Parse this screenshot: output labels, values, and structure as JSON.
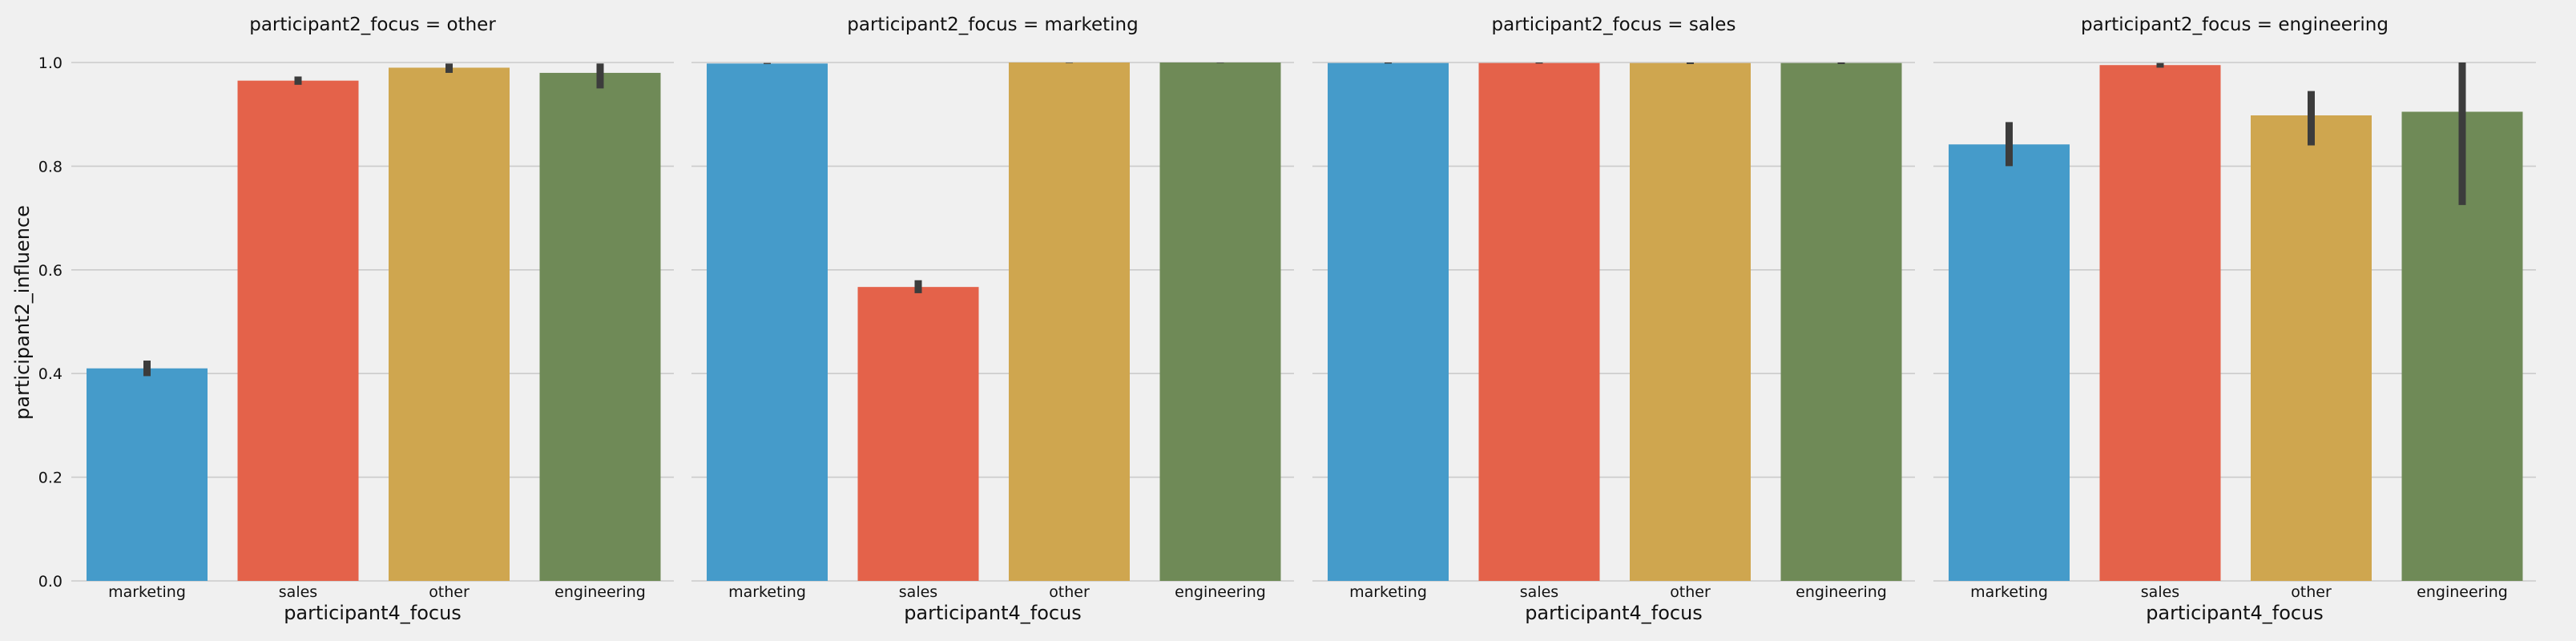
{
  "chart_data": {
    "type": "bar",
    "ylabel": "participant2_influence",
    "xlabel": "participant4_focus",
    "ylim": [
      0,
      1.0
    ],
    "yticks": [
      "0.0",
      "0.2",
      "0.4",
      "0.6",
      "0.8",
      "1.0"
    ],
    "grid": true,
    "categories": [
      "marketing",
      "sales",
      "other",
      "engineering"
    ],
    "colors": [
      "#459bca",
      "#e4624a",
      "#cfa64f",
      "#6f8a57"
    ],
    "error_bar_color": "#3c3c3c",
    "panels": [
      {
        "title": "participant2_focus = other",
        "values": [
          0.41,
          0.965,
          0.99,
          0.98
        ],
        "ci": [
          [
            0.395,
            0.425
          ],
          [
            0.957,
            0.973
          ],
          [
            0.98,
            0.998
          ],
          [
            0.95,
            0.998
          ]
        ]
      },
      {
        "title": "participant2_focus = marketing",
        "values": [
          0.998,
          0.567,
          1.0,
          1.0
        ],
        "ci": [
          [
            0.997,
            0.999
          ],
          [
            0.555,
            0.58
          ],
          [
            0.999,
            1.0
          ],
          [
            0.999,
            1.0
          ]
        ]
      },
      {
        "title": "participant2_focus = sales",
        "values": [
          0.999,
          0.999,
          0.999,
          0.999
        ],
        "ci": [
          [
            0.998,
            1.0
          ],
          [
            0.998,
            1.0
          ],
          [
            0.997,
            1.0
          ],
          [
            0.997,
            1.0
          ]
        ]
      },
      {
        "title": "participant2_focus = engineering",
        "values": [
          0.842,
          0.995,
          0.898,
          0.905
        ],
        "ci": [
          [
            0.8,
            0.885
          ],
          [
            0.99,
            0.999
          ],
          [
            0.84,
            0.945
          ],
          [
            0.725,
            1.0
          ]
        ]
      }
    ]
  }
}
